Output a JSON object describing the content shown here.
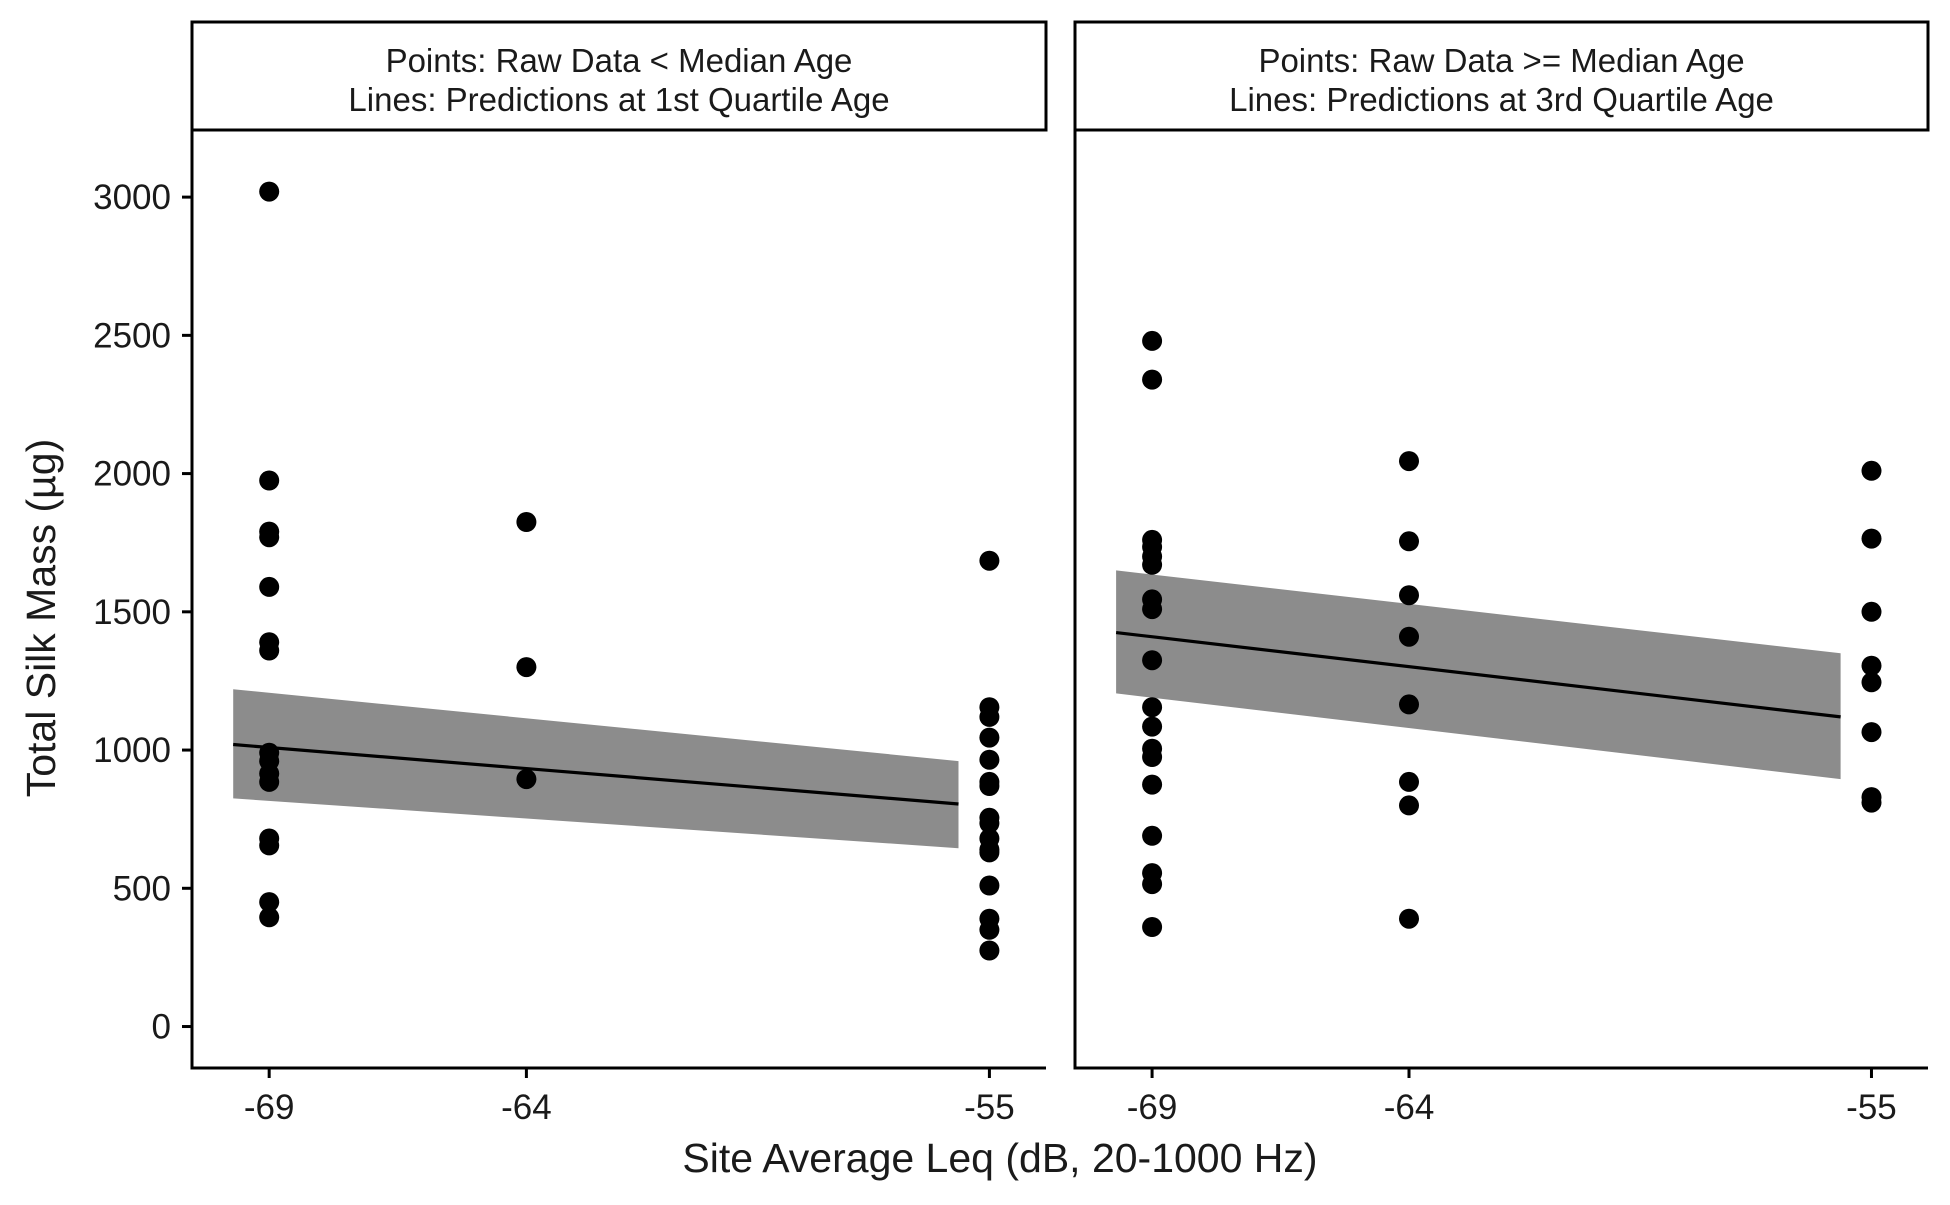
{
  "chart_data": {
    "type": "scatter",
    "xlabel": "Site Average Leq (dB, 20-1000 Hz)",
    "ylabel": "Total Silk Mass (µg)",
    "ylim": [
      -150,
      3250
    ],
    "xlim": [
      -70.5,
      -53.9
    ],
    "x_ticks": [
      -69,
      -64,
      -55
    ],
    "x_tick_labels": [
      "-69",
      "-64",
      "-55"
    ],
    "y_ticks": [
      0,
      500,
      1000,
      1500,
      2000,
      2500,
      3000
    ],
    "y_tick_labels": [
      "0",
      "500",
      "1000",
      "1500",
      "2000",
      "2500",
      "3000"
    ],
    "grid": false,
    "legend": "none",
    "colors": {
      "points": "#000000",
      "line": "#000000",
      "ribbon": "#8c8c8c",
      "frame": "#000000"
    },
    "panels": [
      {
        "strip_lines": [
          "Points: Raw Data < Median Age",
          "Lines: Predictions at 1st Quartile Age"
        ],
        "points": [
          {
            "x": -69,
            "y": 3020
          },
          {
            "x": -69,
            "y": 1975
          },
          {
            "x": -69,
            "y": 1790
          },
          {
            "x": -69,
            "y": 1770
          },
          {
            "x": -69,
            "y": 1590
          },
          {
            "x": -69,
            "y": 1390
          },
          {
            "x": -69,
            "y": 1360
          },
          {
            "x": -69,
            "y": 990
          },
          {
            "x": -69,
            "y": 960
          },
          {
            "x": -69,
            "y": 915
          },
          {
            "x": -69,
            "y": 885
          },
          {
            "x": -69,
            "y": 680
          },
          {
            "x": -69,
            "y": 655
          },
          {
            "x": -69,
            "y": 450
          },
          {
            "x": -69,
            "y": 395
          },
          {
            "x": -64,
            "y": 1825
          },
          {
            "x": -64,
            "y": 1300
          },
          {
            "x": -64,
            "y": 895
          },
          {
            "x": -55,
            "y": 1685
          },
          {
            "x": -55,
            "y": 1155
          },
          {
            "x": -55,
            "y": 1120
          },
          {
            "x": -55,
            "y": 1045
          },
          {
            "x": -55,
            "y": 965
          },
          {
            "x": -55,
            "y": 885
          },
          {
            "x": -55,
            "y": 870
          },
          {
            "x": -55,
            "y": 755
          },
          {
            "x": -55,
            "y": 735
          },
          {
            "x": -55,
            "y": 680
          },
          {
            "x": -55,
            "y": 640
          },
          {
            "x": -55,
            "y": 630
          },
          {
            "x": -55,
            "y": 510
          },
          {
            "x": -55,
            "y": 390
          },
          {
            "x": -55,
            "y": 350
          },
          {
            "x": -55,
            "y": 275
          }
        ],
        "fit_x": [
          -69.7,
          -55.6
        ],
        "fit_y": [
          1020,
          805
        ],
        "band_lower": [
          825,
          645
        ],
        "band_upper": [
          1220,
          960
        ]
      },
      {
        "strip_lines": [
          "Points: Raw Data >= Median Age",
          "Lines: Predictions at 3rd Quartile Age"
        ],
        "points": [
          {
            "x": -69,
            "y": 2480
          },
          {
            "x": -69,
            "y": 2340
          },
          {
            "x": -69,
            "y": 1760
          },
          {
            "x": -69,
            "y": 1735
          },
          {
            "x": -69,
            "y": 1700
          },
          {
            "x": -69,
            "y": 1670
          },
          {
            "x": -69,
            "y": 1545
          },
          {
            "x": -69,
            "y": 1510
          },
          {
            "x": -69,
            "y": 1325
          },
          {
            "x": -69,
            "y": 1155
          },
          {
            "x": -69,
            "y": 1085
          },
          {
            "x": -69,
            "y": 1005
          },
          {
            "x": -69,
            "y": 975
          },
          {
            "x": -69,
            "y": 875
          },
          {
            "x": -69,
            "y": 690
          },
          {
            "x": -69,
            "y": 555
          },
          {
            "x": -69,
            "y": 515
          },
          {
            "x": -69,
            "y": 360
          },
          {
            "x": -64,
            "y": 2045
          },
          {
            "x": -64,
            "y": 1755
          },
          {
            "x": -64,
            "y": 1560
          },
          {
            "x": -64,
            "y": 1410
          },
          {
            "x": -64,
            "y": 1165
          },
          {
            "x": -64,
            "y": 885
          },
          {
            "x": -64,
            "y": 800
          },
          {
            "x": -64,
            "y": 390
          },
          {
            "x": -55,
            "y": 2010
          },
          {
            "x": -55,
            "y": 1765
          },
          {
            "x": -55,
            "y": 1500
          },
          {
            "x": -55,
            "y": 1305
          },
          {
            "x": -55,
            "y": 1245
          },
          {
            "x": -55,
            "y": 1065
          },
          {
            "x": -55,
            "y": 830
          },
          {
            "x": -55,
            "y": 810
          }
        ],
        "fit_x": [
          -69.7,
          -55.6
        ],
        "fit_y": [
          1425,
          1120
        ],
        "band_lower": [
          1205,
          895
        ],
        "band_upper": [
          1650,
          1350
        ]
      }
    ]
  }
}
